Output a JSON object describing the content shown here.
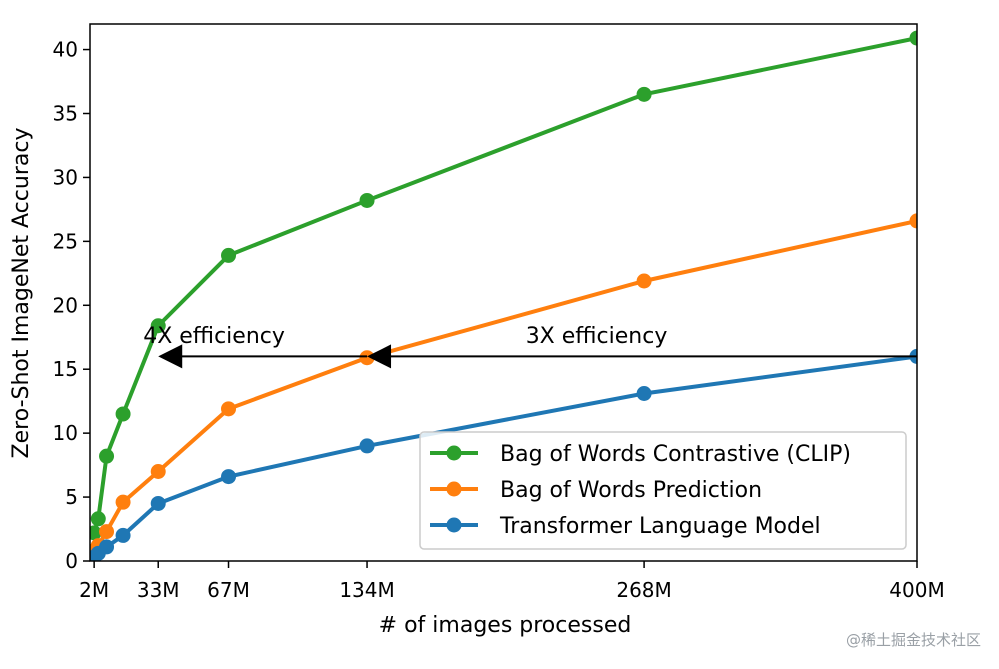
{
  "chart_data": {
    "type": "line",
    "xlabel": "# of images processed",
    "ylabel": "Zero-Shot ImageNet Accuracy",
    "xlim": [
      0,
      400
    ],
    "ylim": [
      0,
      42
    ],
    "x_ticks": [
      {
        "value": 2,
        "label": "2M"
      },
      {
        "value": 33,
        "label": "33M"
      },
      {
        "value": 67,
        "label": "67M"
      },
      {
        "value": 134,
        "label": "134M"
      },
      {
        "value": 268,
        "label": "268M"
      },
      {
        "value": 400,
        "label": "400M"
      }
    ],
    "y_ticks": [
      0,
      5,
      10,
      15,
      20,
      25,
      30,
      35,
      40
    ],
    "grid": false,
    "legend_position": "lower-right",
    "series": [
      {
        "name": "Bag of Words Contrastive (CLIP)",
        "color": "#2ca02c",
        "x": [
          2,
          4,
          8,
          16,
          33,
          67,
          134,
          268,
          400
        ],
        "y": [
          2.2,
          3.3,
          8.2,
          11.5,
          18.4,
          23.9,
          28.2,
          36.5,
          40.9
        ]
      },
      {
        "name": "Bag of Words Prediction",
        "color": "#ff7f0e",
        "x": [
          2,
          4,
          8,
          16,
          33,
          67,
          134,
          268,
          400
        ],
        "y": [
          0.8,
          1.2,
          2.3,
          4.6,
          7.0,
          11.9,
          15.9,
          21.9,
          26.6
        ]
      },
      {
        "name": "Transformer Language Model",
        "color": "#1f77b4",
        "x": [
          2,
          4,
          8,
          16,
          33,
          67,
          134,
          268,
          400
        ],
        "y": [
          0.3,
          0.6,
          1.1,
          2.0,
          4.5,
          6.6,
          9.0,
          13.1,
          16.0
        ]
      }
    ],
    "annotations": [
      {
        "text": "4X efficiency",
        "x": 60,
        "y": 16.6
      },
      {
        "text": "3X efficiency",
        "x": 245,
        "y": 16.6
      }
    ],
    "arrows": [
      {
        "from_x": 400,
        "to_x": 134,
        "y": 16.0
      },
      {
        "from_x": 134,
        "to_x": 33,
        "y": 16.0
      }
    ]
  },
  "watermark": "@稀土掘金技术社区"
}
